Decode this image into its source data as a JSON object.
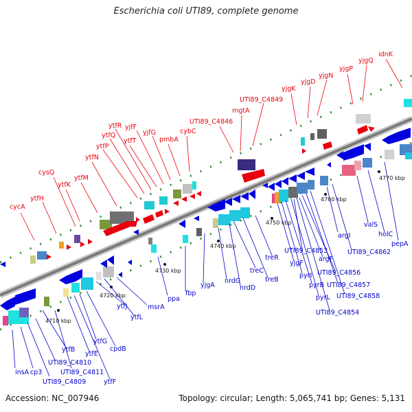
{
  "title": "Escherichia coli UTI89, complete genome",
  "accession": "Accession: NC_007946",
  "summary": "Topology: circular; Length: 5,065,741 bp; Genes: 5,131",
  "colors": {
    "top_labels": "#e8000b",
    "bottom_labels": "#0000c8",
    "backbone": "#8a8a8a",
    "dots": "#2e8b2e"
  },
  "ticks": [
    "4710 kbp",
    "4720 kbp",
    "4730 kbp",
    "4740 kbp",
    "4750 kbp",
    "4760 kbp",
    "4770 kbp"
  ],
  "top_labels": [
    "cycA",
    "ytfH",
    "cysQ",
    "ytfK",
    "ytfM",
    "ytfN",
    "ytfP",
    "ytfQ",
    "ytfR",
    "ytfT",
    "yjfF",
    "yjfG",
    "pmbA",
    "cybC",
    "UTI89_C4846",
    "mgtA",
    "UTI89_C4849",
    "yjgK",
    "yjgD",
    "yjgN",
    "yjgP",
    "yjgQ",
    "idnK"
  ],
  "bottom_labels": [
    "insA",
    "cp3",
    "UTI89_C4809",
    "UTI89_C4810",
    "ytfB",
    "UTI89_C4811",
    "ytfE",
    "ytfF",
    "ytfG",
    "cpdB",
    "ytfJ",
    "ytfL",
    "msrA",
    "ppa",
    "fbp",
    "yjgA",
    "nrdG",
    "nrdD",
    "treC",
    "treB",
    "treR",
    "yjgF",
    "pyrI",
    "pyrB",
    "pyrL",
    "UTI89_C4853",
    "UTI89_C4854",
    "argF",
    "UTI89_C4856",
    "UTI89_C4857",
    "UTI89_C4858",
    "argI",
    "UTI89_C4862",
    "valS",
    "holC",
    "pepA"
  ]
}
